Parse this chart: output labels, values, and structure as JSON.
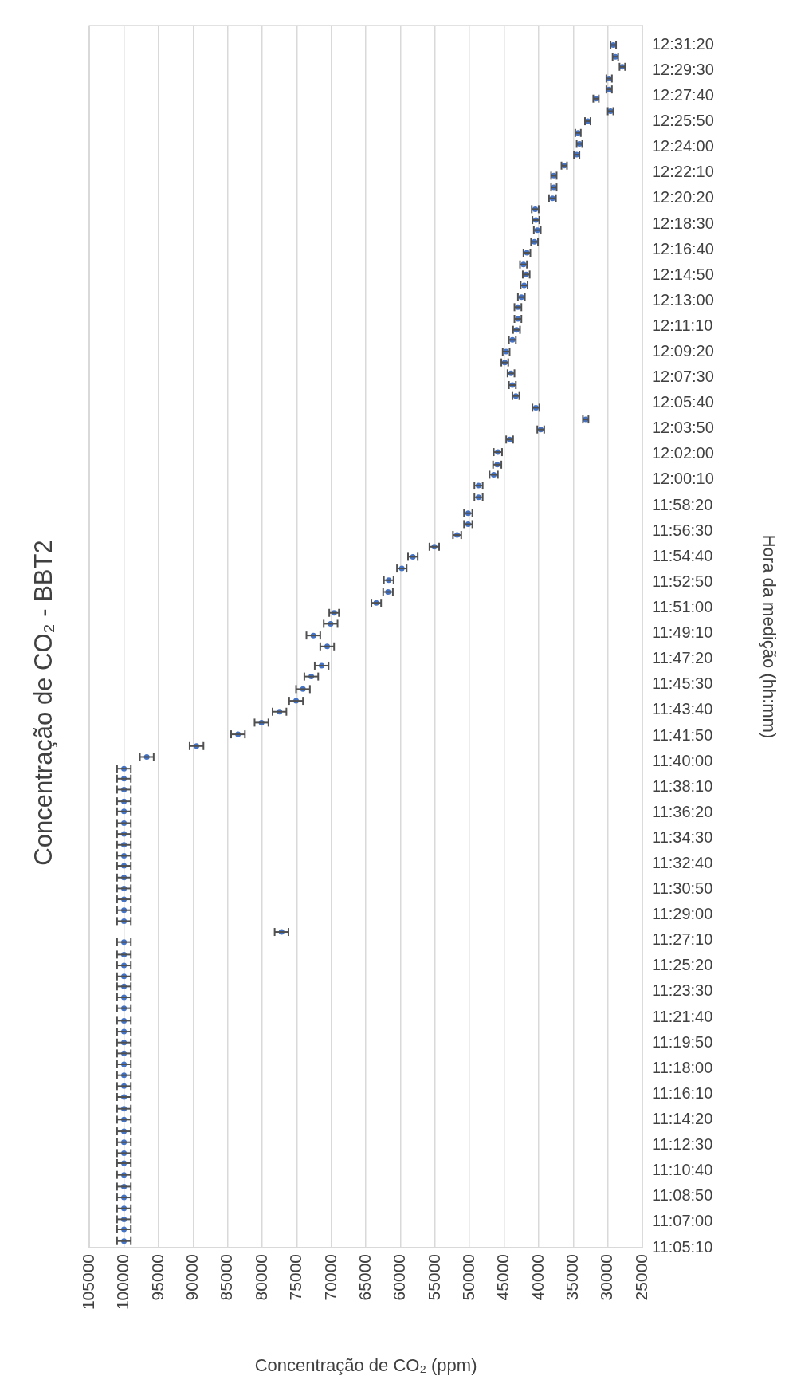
{
  "chart_data": {
    "type": "scatter",
    "title": "Concentração de CO₂ - BBT2",
    "xlabel": "Concentração de CO₂ (ppm)",
    "ylabel": "Hora da medição (hh:mm)",
    "color": "#4472c4",
    "marker": "circle",
    "grid": "x",
    "xlim": [
      105000,
      25000
    ],
    "xticks": [
      25000,
      30000,
      35000,
      40000,
      45000,
      50000,
      55000,
      60000,
      65000,
      70000,
      75000,
      80000,
      85000,
      90000,
      95000,
      100000,
      105000
    ],
    "ylim": [
      11.0861,
      12.5453
    ],
    "yticks": [
      {
        "value": 11.0861,
        "label": "11:05:10"
      },
      {
        "value": 11.1167,
        "label": "11:07:00"
      },
      {
        "value": 11.1472,
        "label": "11:08:50"
      },
      {
        "value": 11.1778,
        "label": "11:10:40"
      },
      {
        "value": 11.2083,
        "label": "11:12:30"
      },
      {
        "value": 11.2389,
        "label": "11:14:20"
      },
      {
        "value": 11.2694,
        "label": "11:16:10"
      },
      {
        "value": 11.3,
        "label": "11:18:00"
      },
      {
        "value": 11.3306,
        "label": "11:19:50"
      },
      {
        "value": 11.3611,
        "label": "11:21:40"
      },
      {
        "value": 11.3917,
        "label": "11:23:30"
      },
      {
        "value": 11.4222,
        "label": "11:25:20"
      },
      {
        "value": 11.4528,
        "label": "11:27:10"
      },
      {
        "value": 11.4833,
        "label": "11:29:00"
      },
      {
        "value": 11.5139,
        "label": "11:30:50"
      },
      {
        "value": 11.5444,
        "label": "11:32:40"
      },
      {
        "value": 11.575,
        "label": "11:34:30"
      },
      {
        "value": 11.6056,
        "label": "11:36:20"
      },
      {
        "value": 11.6361,
        "label": "11:38:10"
      },
      {
        "value": 11.6667,
        "label": "11:40:00"
      },
      {
        "value": 11.6972,
        "label": "11:41:50"
      },
      {
        "value": 11.7278,
        "label": "11:43:40"
      },
      {
        "value": 11.7583,
        "label": "11:45:30"
      },
      {
        "value": 11.7889,
        "label": "11:47:20"
      },
      {
        "value": 11.8194,
        "label": "11:49:10"
      },
      {
        "value": 11.85,
        "label": "11:51:00"
      },
      {
        "value": 11.8806,
        "label": "11:52:50"
      },
      {
        "value": 11.9111,
        "label": "11:54:40"
      },
      {
        "value": 11.9417,
        "label": "11:56:30"
      },
      {
        "value": 11.9722,
        "label": "11:58:20"
      },
      {
        "value": 12.0028,
        "label": "12:00:10"
      },
      {
        "value": 12.0333,
        "label": "12:02:00"
      },
      {
        "value": 12.0639,
        "label": "12:03:50"
      },
      {
        "value": 12.0944,
        "label": "12:05:40"
      },
      {
        "value": 12.125,
        "label": "12:07:30"
      },
      {
        "value": 12.1556,
        "label": "12:09:20"
      },
      {
        "value": 12.1861,
        "label": "12:11:10"
      },
      {
        "value": 12.2167,
        "label": "12:13:00"
      },
      {
        "value": 12.2472,
        "label": "12:14:50"
      },
      {
        "value": 12.2778,
        "label": "12:16:40"
      },
      {
        "value": 12.3083,
        "label": "12:18:30"
      },
      {
        "value": 12.3389,
        "label": "12:20:20"
      },
      {
        "value": 12.3694,
        "label": "12:22:10"
      },
      {
        "value": 12.4,
        "label": "12:24:00"
      },
      {
        "value": 12.4306,
        "label": "12:25:50"
      },
      {
        "value": 12.4611,
        "label": "12:27:40"
      },
      {
        "value": 12.4917,
        "label": "12:29:30"
      },
      {
        "value": 12.5222,
        "label": "12:31:20"
      }
    ],
    "values": [
      11.094,
      11.108,
      11.12,
      11.133,
      11.146,
      11.159,
      11.173,
      11.187,
      11.199,
      11.212,
      11.225,
      11.239,
      11.252,
      11.266,
      11.279,
      11.292,
      11.305,
      11.318,
      11.331,
      11.344,
      11.357,
      11.372,
      11.385,
      11.398,
      11.41,
      11.423,
      11.436,
      11.451,
      11.463,
      11.476,
      11.489,
      11.502,
      11.515,
      11.528,
      11.542,
      11.554,
      11.567,
      11.58,
      11.593,
      11.607,
      11.619,
      11.633,
      11.646,
      11.658,
      11.672,
      11.685,
      11.699,
      11.713,
      11.726,
      11.739,
      11.753,
      11.768,
      11.781,
      11.804,
      11.817,
      11.831,
      11.844,
      11.856,
      11.869,
      11.883,
      11.897,
      11.911,
      11.923,
      11.937,
      11.95,
      11.963,
      11.982,
      11.996,
      12.009,
      12.021,
      12.036,
      12.051,
      12.063,
      12.075,
      12.089,
      12.103,
      12.116,
      12.13,
      12.143,
      12.156,
      12.17,
      12.182,
      12.195,
      12.209,
      12.221,
      12.235,
      12.248,
      12.26,
      12.274,
      12.287,
      12.301,
      12.313,
      12.326,
      12.339,
      12.352,
      12.366,
      12.378,
      12.391,
      12.404,
      12.417,
      12.431,
      12.443,
      12.458,
      12.469,
      12.482,
      12.496,
      12.508,
      12.522
    ],
    "x": [
      100000,
      100000,
      100000,
      100000,
      100000,
      100000,
      100000,
      100000,
      100000,
      100000,
      100000,
      100000,
      100000,
      100000,
      100000,
      100000,
      100000,
      100000,
      100000,
      100000,
      100000,
      100000,
      100000,
      100000,
      100000,
      100000,
      100000,
      100000,
      77200,
      100000,
      100000,
      100000,
      100000,
      100000,
      100000,
      100000,
      100000,
      100000,
      100000,
      100000,
      100000,
      100000,
      100000,
      100000,
      96700,
      89500,
      83500,
      80100,
      77500,
      75100,
      74100,
      72900,
      71400,
      70600,
      72600,
      70100,
      69600,
      63500,
      61800,
      61700,
      59800,
      58200,
      55100,
      51800,
      50200,
      50200,
      48700,
      48700,
      46500,
      46000,
      45900,
      44200,
      39700,
      33200,
      40400,
      43300,
      43800,
      44000,
      44900,
      44700,
      43800,
      43200,
      43000,
      43000,
      42500,
      42100,
      41800,
      42200,
      41700,
      40600,
      40200,
      40400,
      40500,
      38000,
      37800,
      37800,
      36300,
      34500,
      34100,
      34300,
      32900,
      29600,
      31700,
      29800,
      29800,
      27900,
      28900,
      29200
    ],
    "xerrors": [
      1000,
      1000,
      1000,
      1000,
      1000,
      1000,
      1000,
      1000,
      1000,
      1000,
      1000,
      1000,
      1000,
      1000,
      1000,
      1000,
      1000,
      1000,
      1000,
      1000,
      1000,
      1000,
      1000,
      1000,
      1000,
      1000,
      1000,
      1000,
      1000,
      1000,
      1000,
      1000,
      1000,
      1000,
      1000,
      1000,
      1000,
      1000,
      1000,
      1000,
      1000,
      1000,
      1000,
      1000,
      1000,
      1000,
      1000,
      1000,
      1000,
      1000,
      1000,
      1000,
      1000,
      1000,
      1000,
      1000,
      700,
      700,
      700,
      700,
      700,
      700,
      700,
      600,
      600,
      600,
      600,
      600,
      600,
      600,
      600,
      500,
      500,
      400,
      500,
      500,
      500,
      500,
      500,
      500,
      500,
      500,
      500,
      500,
      500,
      500,
      500,
      500,
      500,
      500,
      500,
      500,
      500,
      500,
      400,
      400,
      400,
      400,
      400,
      400,
      400,
      400,
      400,
      400,
      400,
      400,
      400,
      400
    ]
  }
}
